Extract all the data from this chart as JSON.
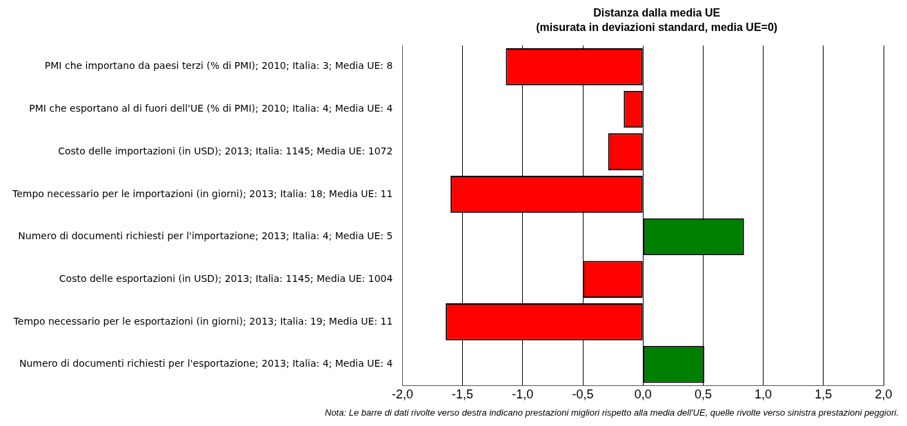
{
  "chart_data": {
    "type": "bar",
    "orientation": "horizontal",
    "title": "Distanza dalla media UE\n(misurata in deviazioni standard, media UE=0)",
    "categories": [
      "PMI che importano da paesi terzi (% di PMI); 2010; Italia: 3; Media UE: 8",
      "PMI che esportano al di fuori dell'UE (% di PMI); 2010; Italia: 4; Media UE: 4",
      "Costo delle importazioni (in USD); 2013; Italia: 1145; Media UE: 1072",
      "Tempo necessario per le importazioni (in giorni); 2013; Italia: 18; Media UE: 11",
      "Numero di documenti richiesti per l'importazione; 2013; Italia: 4; Media UE: 5",
      "Costo delle esportazioni (in USD); 2013; Italia: 1145; Media UE: 1004",
      "Tempo necessario per le esportazioni (in giorni); 2013; Italia: 19; Media UE: 11",
      "Numero di documenti richiesti per l'esportazione; 2013; Italia: 4; Media UE: 4"
    ],
    "values": [
      -1.14,
      -0.16,
      -0.29,
      -1.6,
      0.84,
      -0.5,
      -1.64,
      0.51
    ],
    "colors": [
      "#ff0000",
      "#ff0000",
      "#ff0000",
      "#ff0000",
      "#008000",
      "#ff0000",
      "#ff0000",
      "#008000"
    ],
    "xlim": [
      -2,
      2
    ],
    "xticks": [
      {
        "value": -2,
        "label": "-2,0"
      },
      {
        "value": -1.5,
        "label": "-1,5"
      },
      {
        "value": -1,
        "label": "-1,0"
      },
      {
        "value": -0.5,
        "label": "-0,5"
      },
      {
        "value": 0,
        "label": "0,0"
      },
      {
        "value": 0.5,
        "label": "0,5"
      },
      {
        "value": 1,
        "label": "1,0"
      },
      {
        "value": 1.5,
        "label": "1,5"
      },
      {
        "value": 2,
        "label": "2,0"
      }
    ],
    "grid": "x",
    "legend": false,
    "annotations": [
      "Nota: Le barre di dati rivolte verso destra indicano prestazioni migliori rispetto alla media dell'UE, quelle rivolte verso sinistra prestazioni peggiori."
    ]
  }
}
